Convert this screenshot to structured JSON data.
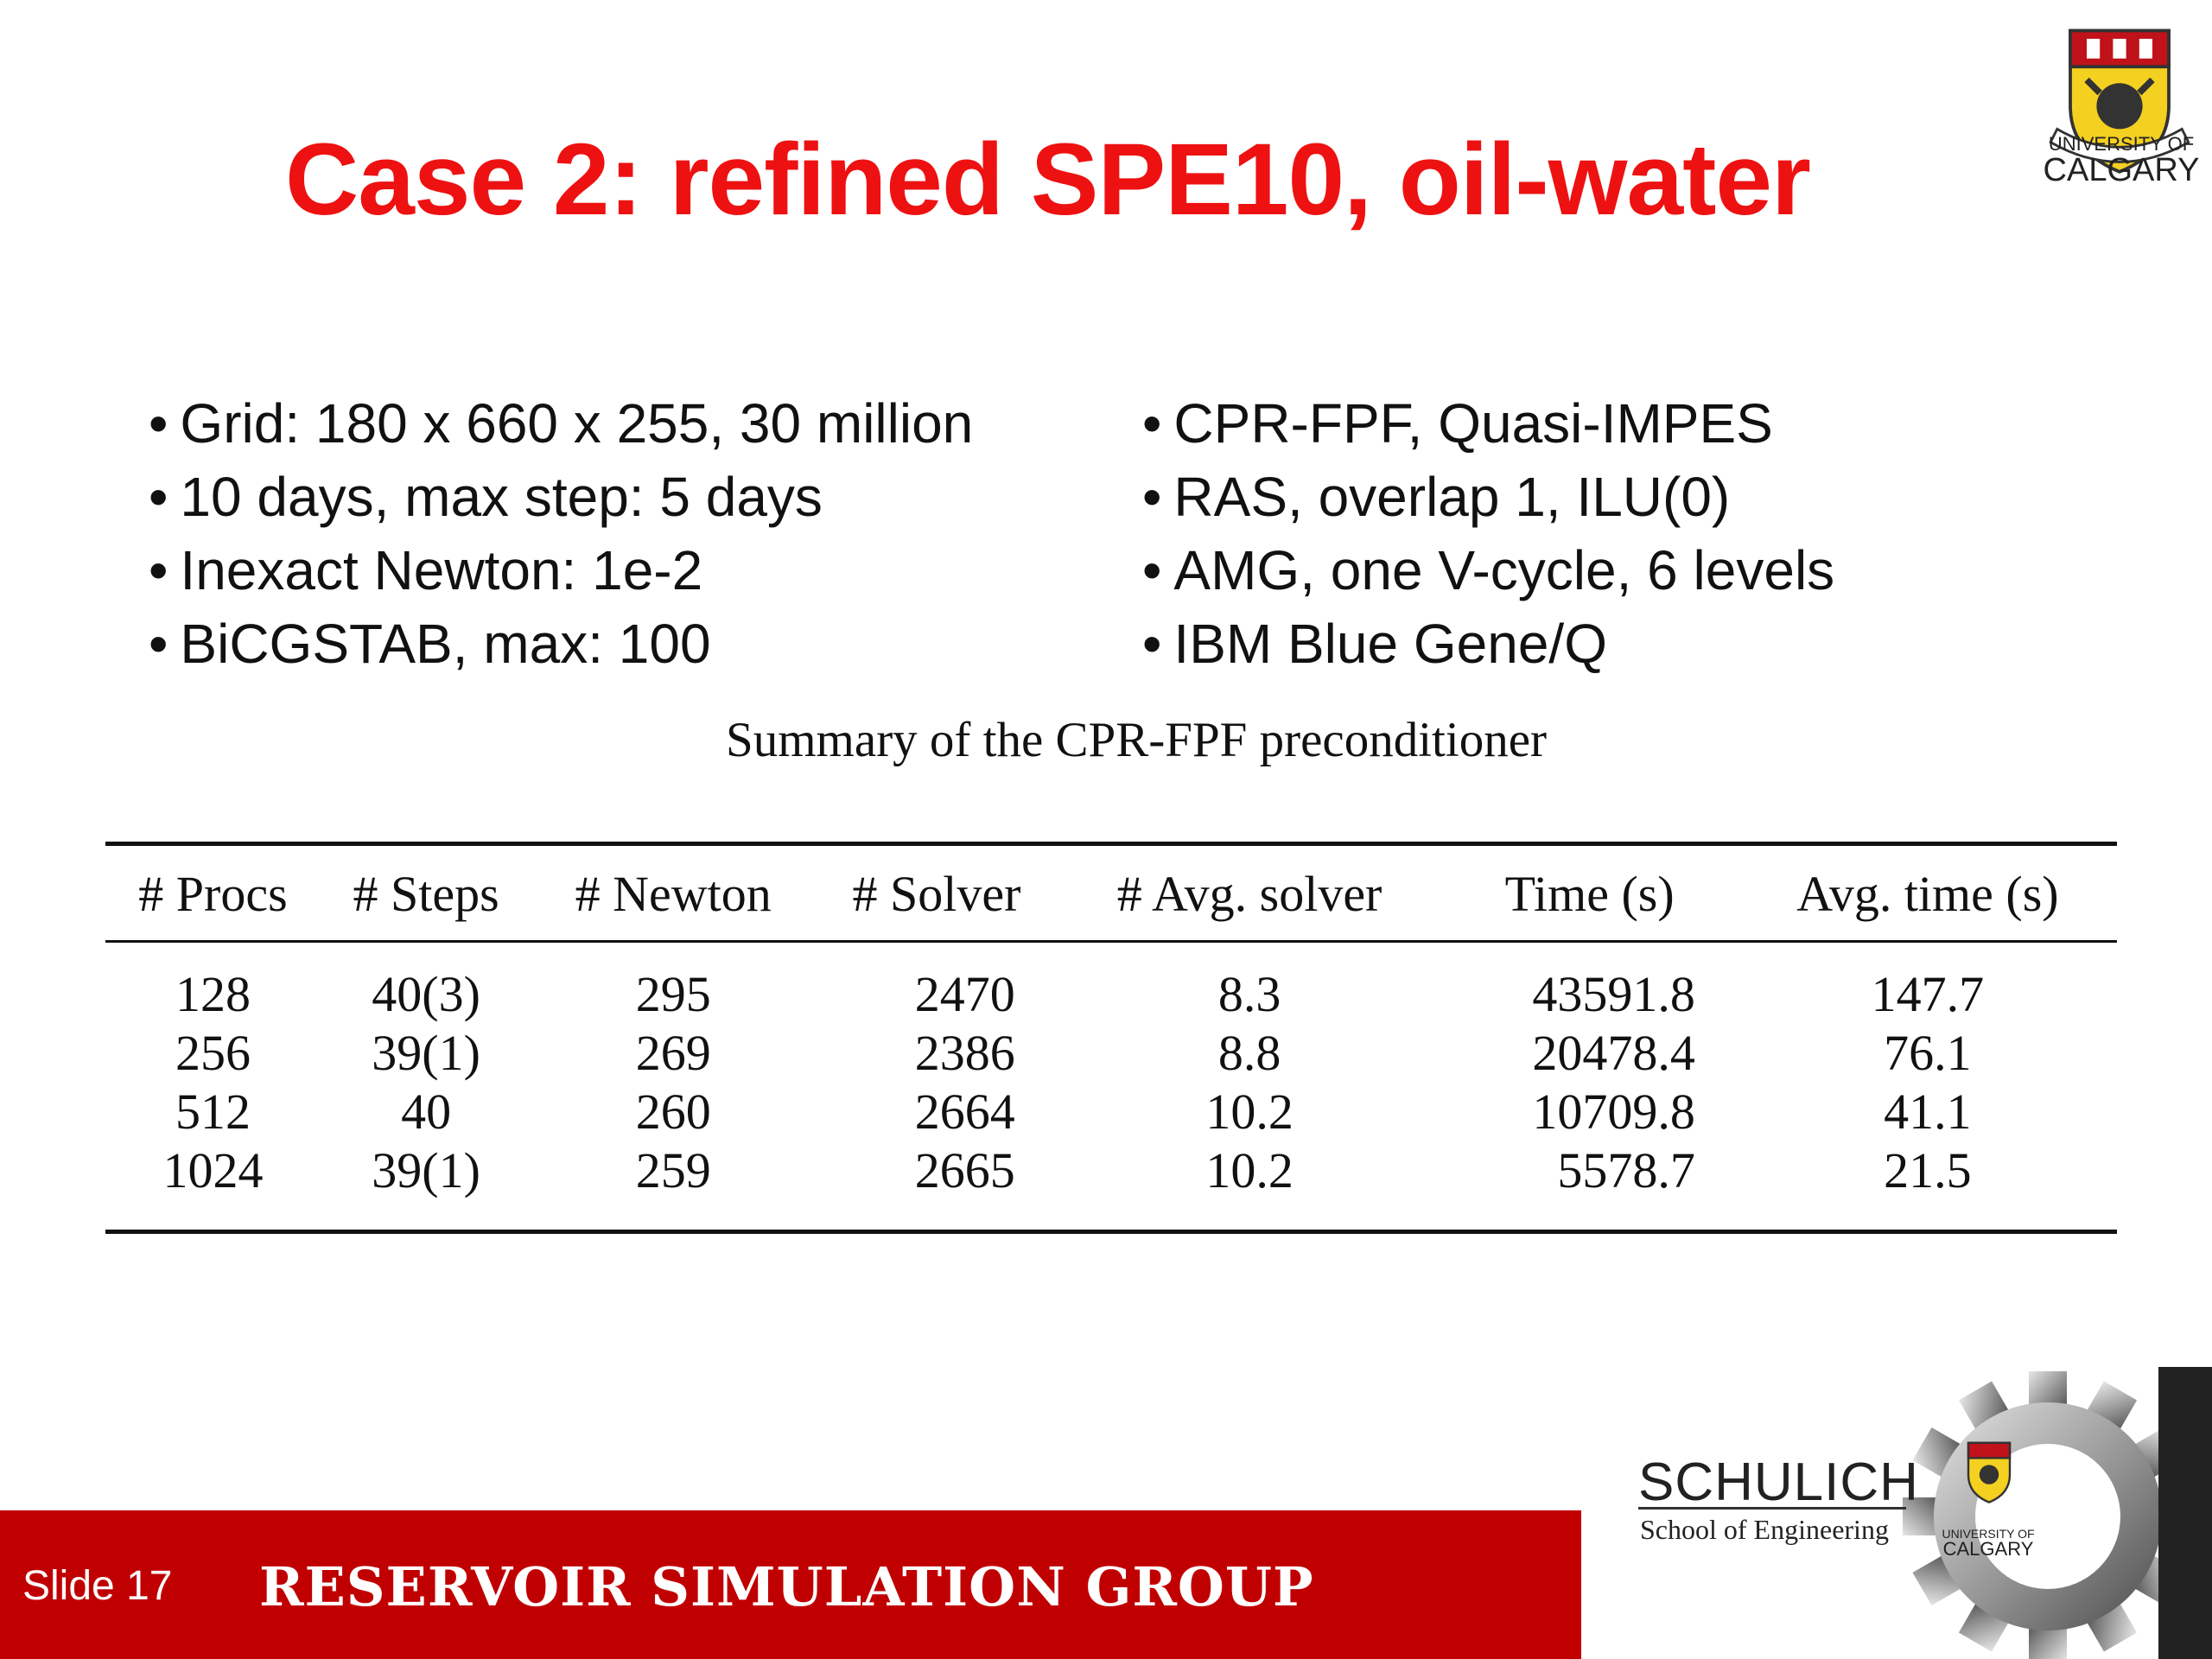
{
  "title": "Case 2: refined SPE10, oil-water",
  "logo": {
    "line1": "UNIVERSITY OF",
    "line2": "CALGARY"
  },
  "bullets_left": [
    "Grid: 180 x 660 x 255, 30 million",
    "10 days, max step: 5 days",
    "Inexact Newton: 1e-2",
    "BiCGSTAB, max: 100"
  ],
  "bullets_right": [
    "CPR-FPF, Quasi-IMPES",
    "RAS, overlap 1, ILU(0)",
    "AMG, one V-cycle, 6 levels",
    "IBM Blue Gene/Q"
  ],
  "table": {
    "caption": "Summary of the CPR-FPF preconditioner",
    "headers": [
      "# Procs",
      "# Steps",
      "# Newton",
      "# Solver",
      "# Avg. solver",
      "Time (s)",
      "Avg. time (s)"
    ],
    "rows": [
      [
        "128",
        "40(3)",
        "295",
        "2470",
        "8.3",
        "43591.8",
        "147.7"
      ],
      [
        "256",
        "39(1)",
        "269",
        "2386",
        "8.8",
        "20478.4",
        "76.1"
      ],
      [
        "512",
        "40",
        "260",
        "2664",
        "10.2",
        "10709.8",
        "41.1"
      ],
      [
        "1024",
        "39(1)",
        "259",
        "2665",
        "10.2",
        "5578.7",
        "21.5"
      ]
    ]
  },
  "footer": {
    "slide": "Slide 17",
    "group": "RESERVOIR SIMULATION GROUP",
    "school_name": "SCHULICH",
    "school_sub": "School of Engineering",
    "uc_line1": "UNIVERSITY OF",
    "uc_line2": "CALGARY"
  },
  "colors": {
    "title": "#ee1111",
    "footer_bar": "#c00000"
  }
}
